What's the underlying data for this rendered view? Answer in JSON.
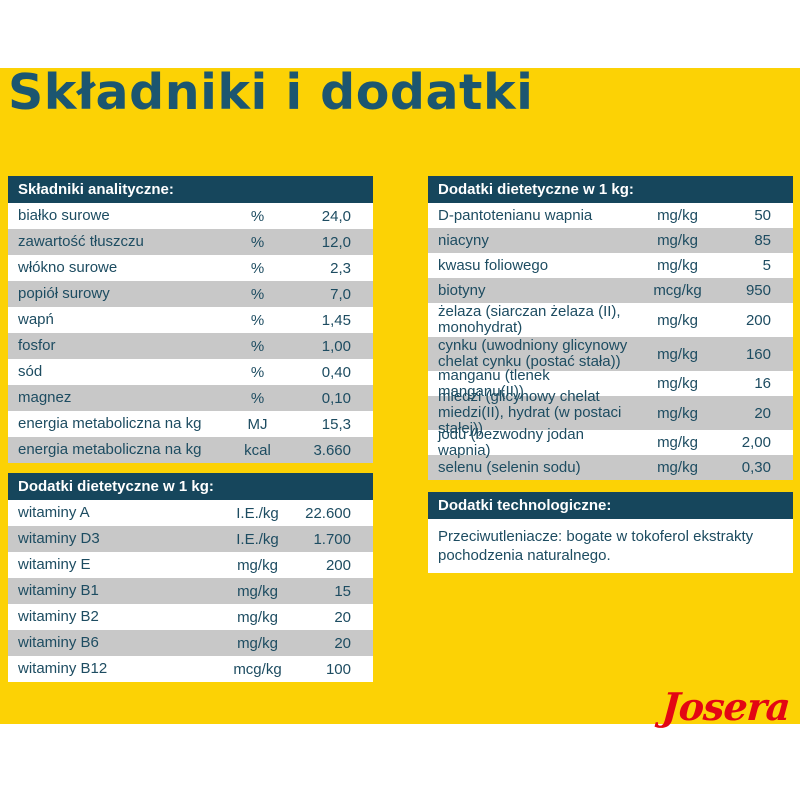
{
  "page": {
    "title": "Składniki i dodatki",
    "logo_text": "Josera"
  },
  "theme": {
    "background_yellow": "#FCD205",
    "header_teal": "#16465C",
    "row_gray": "#C8C8C8",
    "row_white": "#FFFFFF",
    "text_color": "#1D4C61",
    "title_color": "#1C5670",
    "logo_red": "#E30613"
  },
  "tables": {
    "analytical": {
      "header": "Składniki analityczne:",
      "rows": [
        {
          "label": "białko surowe",
          "unit": "%",
          "value": "24,0"
        },
        {
          "label": "zawartość tłuszczu",
          "unit": "%",
          "value": "12,0"
        },
        {
          "label": "włókno surowe",
          "unit": "%",
          "value": "2,3"
        },
        {
          "label": "popiół surowy",
          "unit": "%",
          "value": "7,0"
        },
        {
          "label": "wapń",
          "unit": "%",
          "value": "1,45"
        },
        {
          "label": "fosfor",
          "unit": "%",
          "value": "1,00"
        },
        {
          "label": "sód",
          "unit": "%",
          "value": "0,40"
        },
        {
          "label": "magnez",
          "unit": "%",
          "value": "0,10"
        },
        {
          "label": "energia metaboliczna na kg",
          "unit": "MJ",
          "value": "15,3"
        },
        {
          "label": "energia metaboliczna na kg",
          "unit": "kcal",
          "value": "3.660"
        }
      ]
    },
    "dietary_left": {
      "header": "Dodatki dietetyczne w 1 kg:",
      "rows": [
        {
          "label": "witaminy A",
          "unit": "I.E./kg",
          "value": "22.600"
        },
        {
          "label": "witaminy D3",
          "unit": "I.E./kg",
          "value": "1.700"
        },
        {
          "label": "witaminy E",
          "unit": "mg/kg",
          "value": "200"
        },
        {
          "label": "witaminy B1",
          "unit": "mg/kg",
          "value": "15"
        },
        {
          "label": "witaminy B2",
          "unit": "mg/kg",
          "value": "20"
        },
        {
          "label": "witaminy B6",
          "unit": "mg/kg",
          "value": "20"
        },
        {
          "label": "witaminy B12",
          "unit": "mcg/kg",
          "value": "100"
        }
      ]
    },
    "dietary_right": {
      "header": "Dodatki dietetyczne w 1 kg:",
      "rows": [
        {
          "label": "D-pantotenianu wapnia",
          "unit": "mg/kg",
          "value": "50"
        },
        {
          "label": "niacyny",
          "unit": "mg/kg",
          "value": "85"
        },
        {
          "label": "kwasu foliowego",
          "unit": "mg/kg",
          "value": "5"
        },
        {
          "label": "biotyny",
          "unit": "mcg/kg",
          "value": "950"
        },
        {
          "label": "żelaza (siarczan żelaza (II), monohydrat)",
          "unit": "mg/kg",
          "value": "200",
          "tall": true
        },
        {
          "label": "cynku (uwodniony glicynowy chelat cynku (postać stała))",
          "unit": "mg/kg",
          "value": "160",
          "tall": true
        },
        {
          "label": "manganu (tlenek manganu(II))",
          "unit": "mg/kg",
          "value": "16"
        },
        {
          "label": "miedzi (glicynowy chelat miedzi(II), hydrat (w postaci stałej))",
          "unit": "mg/kg",
          "value": "20",
          "tall": true
        },
        {
          "label": "jodu (bezwodny jodan wapnia)",
          "unit": "mg/kg",
          "value": "2,00"
        },
        {
          "label": "selenu (selenin sodu)",
          "unit": "mg/kg",
          "value": "0,30"
        }
      ]
    },
    "technological": {
      "header": "Dodatki technologiczne:",
      "body": "Przeciwutleniacze: bogate w tokoferol ekstrakty pochodzenia naturalnego."
    }
  }
}
